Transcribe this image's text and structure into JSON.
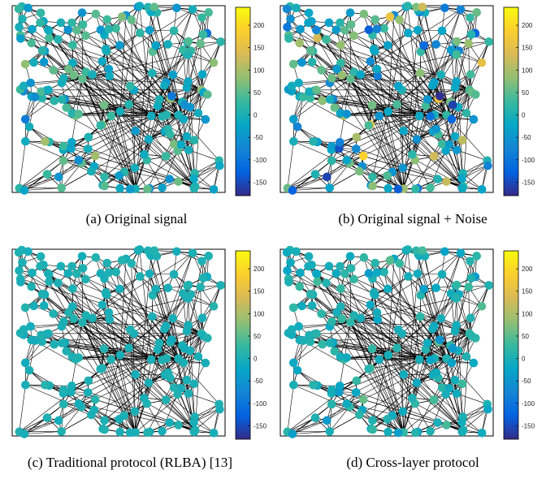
{
  "colors": {
    "colormap": "parula",
    "parula_stops": [
      "#352a87",
      "#0363e1",
      "#1485d4",
      "#06a7c6",
      "#38b99e",
      "#92bf73",
      "#d9ba56",
      "#fcce2e",
      "#f9fb0e"
    ],
    "edge": "#000000",
    "frame": "#000000"
  },
  "chart_data": [
    {
      "type": "scatter",
      "subtype": "graph-signal",
      "caption": "(a) Original signal",
      "colorbar": {
        "range": [
          -180,
          240
        ],
        "ticks": [
          200,
          150,
          100,
          50,
          0,
          -50,
          -100,
          -150
        ],
        "tick_labels": [
          "200",
          "150",
          "100",
          "50",
          "0",
          "-50",
          "-100",
          "-150"
        ]
      },
      "signal_spread": 1.0
    },
    {
      "type": "scatter",
      "subtype": "graph-signal",
      "caption": "(b) Original signal + Noise",
      "colorbar": {
        "range": [
          -180,
          240
        ],
        "ticks": [
          200,
          150,
          100,
          50,
          0,
          -50,
          -100,
          -150
        ],
        "tick_labels": [
          "200",
          "150",
          "100",
          "50",
          "0",
          "-50",
          "-100",
          "-150"
        ]
      },
      "signal_spread": 1.9
    },
    {
      "type": "scatter",
      "subtype": "graph-signal",
      "caption": "(c) Traditional protocol (RLBA) [13]",
      "colorbar": {
        "range": [
          -180,
          240
        ],
        "ticks": [
          200,
          150,
          100,
          50,
          0,
          -50,
          -100,
          -150
        ],
        "tick_labels": [
          "200",
          "150",
          "100",
          "50",
          "0",
          "-50",
          "-100",
          "-150"
        ]
      },
      "signal_spread": 0.12
    },
    {
      "type": "scatter",
      "subtype": "graph-signal",
      "caption": "(d) Cross-layer protocol",
      "colorbar": {
        "range": [
          -180,
          240
        ],
        "ticks": [
          200,
          150,
          100,
          50,
          0,
          -50,
          -100,
          -150
        ],
        "tick_labels": [
          "200",
          "150",
          "100",
          "50",
          "0",
          "-50",
          "-100",
          "-150"
        ]
      },
      "signal_spread": 0.45
    }
  ]
}
